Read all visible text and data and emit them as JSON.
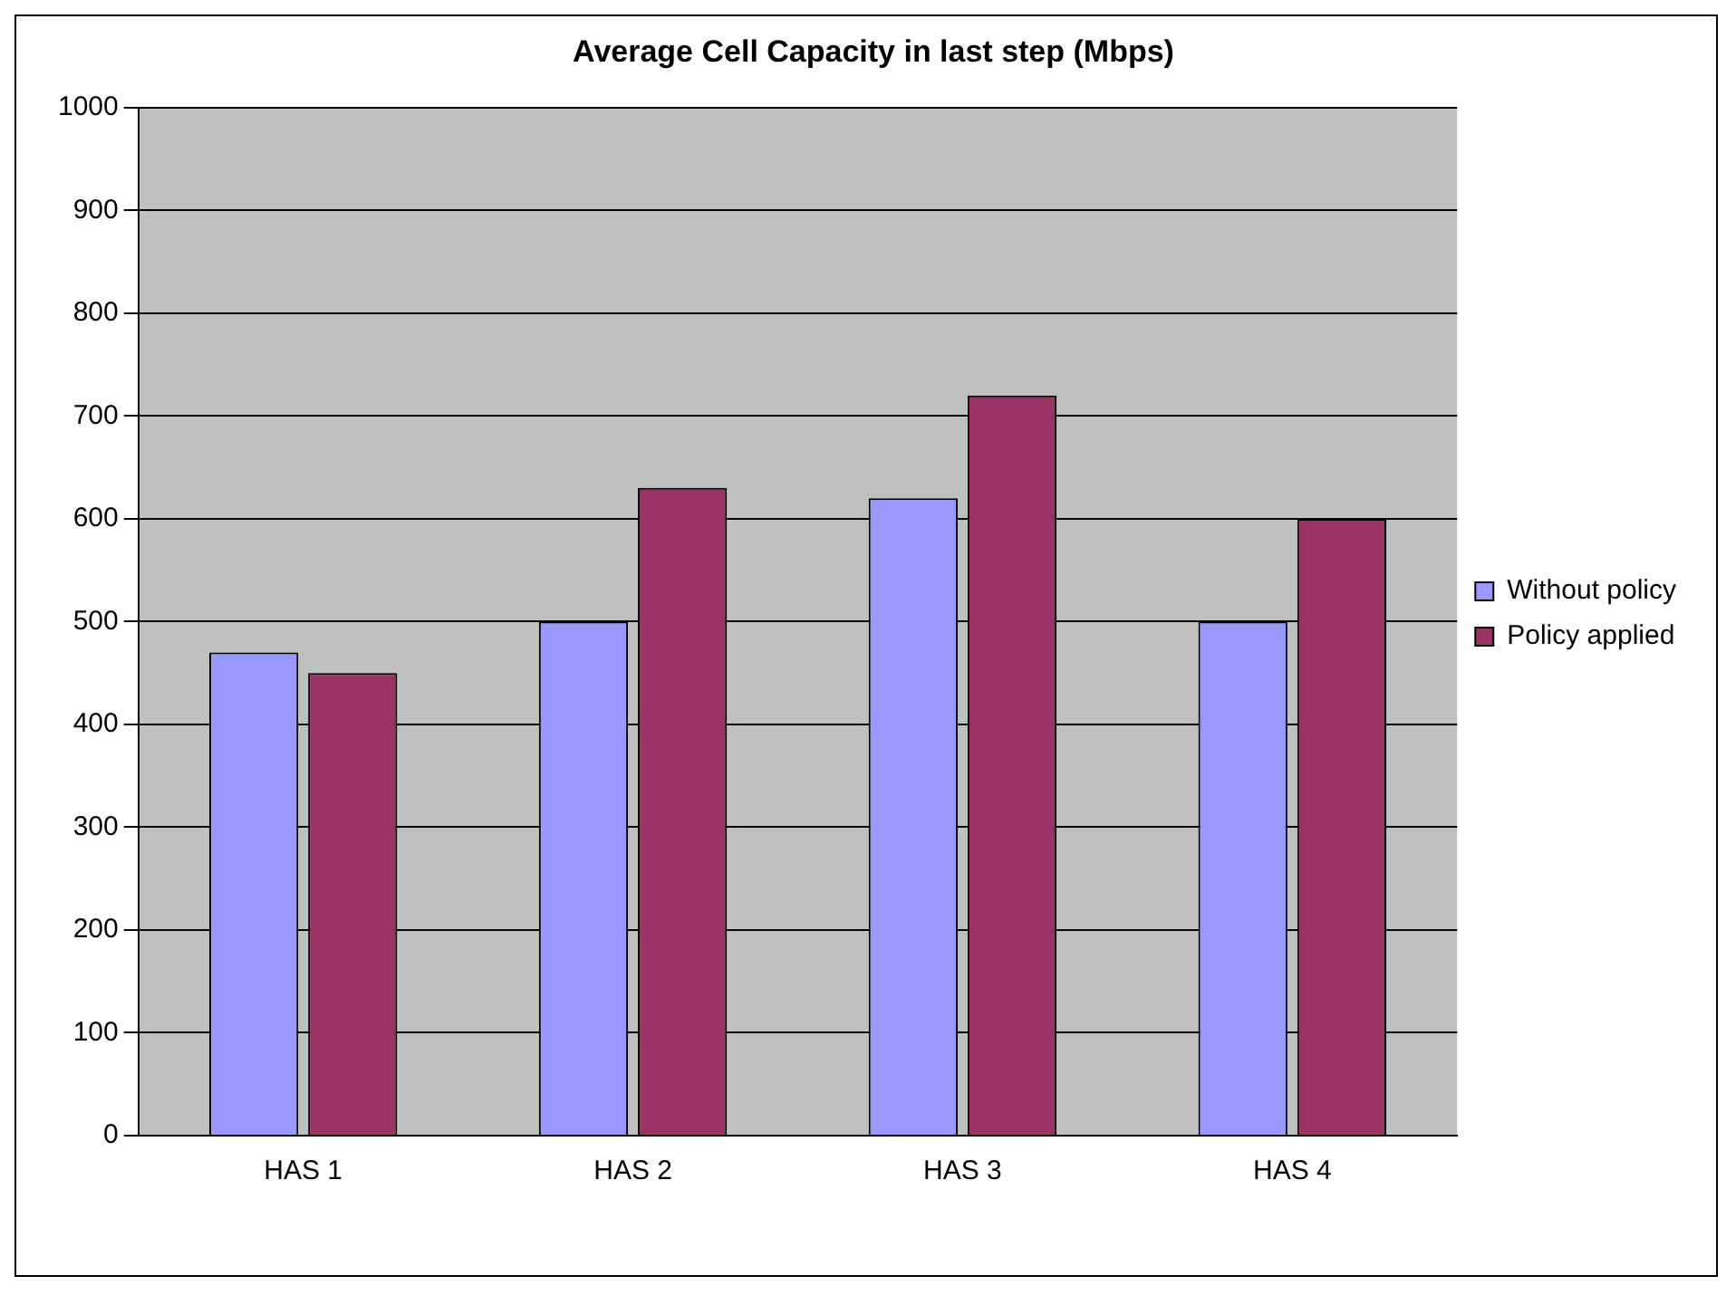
{
  "chart_data": {
    "type": "bar",
    "title": "Average Cell Capacity in last step (Mbps)",
    "categories": [
      "HAS 1",
      "HAS 2",
      "HAS 3",
      "HAS 4"
    ],
    "series": [
      {
        "name": "Without policy",
        "color": "#9999ff",
        "values": [
          470,
          500,
          620,
          500
        ]
      },
      {
        "name": "Policy applied",
        "color": "#993366",
        "values": [
          450,
          630,
          720,
          600
        ]
      }
    ],
    "ylim": [
      0,
      1000
    ],
    "yticks": [
      0,
      100,
      200,
      300,
      400,
      500,
      600,
      700,
      800,
      900,
      1000
    ],
    "grid": "y",
    "legend": "right"
  }
}
